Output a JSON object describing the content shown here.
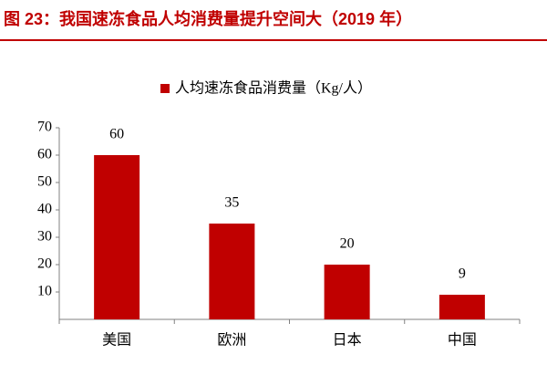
{
  "chart_data": {
    "type": "bar",
    "title": "图 23：我国速冻食品人均消费量提升空间大（2019 年）",
    "categories": [
      "美国",
      "欧洲",
      "日本",
      "中国"
    ],
    "series": [
      {
        "name": "人均速冻食品消费量（Kg/人）",
        "color": "#c00000",
        "values": [
          60,
          35,
          20,
          9
        ]
      }
    ],
    "ylim": [
      0,
      70
    ],
    "yticks": [
      10,
      20,
      30,
      40,
      50,
      60,
      70
    ],
    "grid": false,
    "legend": "top"
  }
}
